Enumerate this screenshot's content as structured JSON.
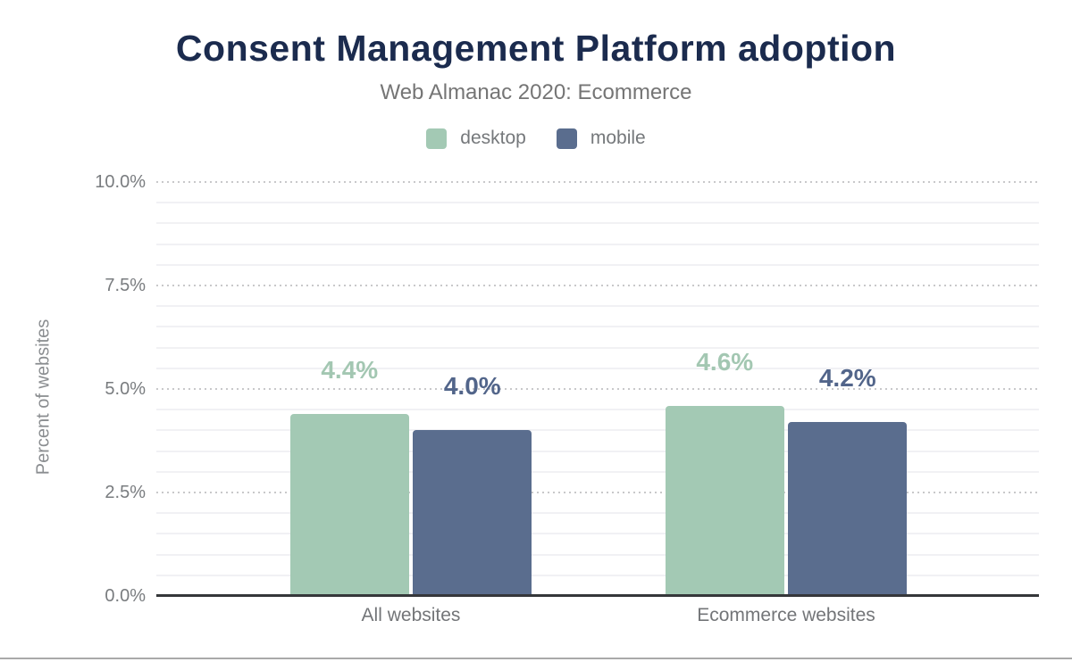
{
  "chart_data": {
    "type": "bar",
    "title": "Consent Management Platform adoption",
    "subtitle": "Web Almanac 2020: Ecommerce",
    "ylabel": "Percent of websites",
    "categories": [
      "All websites",
      "Ecommerce websites"
    ],
    "series": [
      {
        "name": "desktop",
        "color": "#a3c9b4",
        "label_color": "#a3c7b2",
        "values": [
          4.4,
          4.6
        ],
        "value_labels": [
          "4.4%",
          "4.6%"
        ]
      },
      {
        "name": "mobile",
        "color": "#5a6d8e",
        "label_color": "#52658a",
        "values": [
          4.0,
          4.2
        ],
        "value_labels": [
          "4.0%",
          "4.2%"
        ]
      }
    ],
    "ylim": [
      0,
      10
    ],
    "ytick_values": [
      0,
      2.5,
      5,
      7.5,
      10
    ],
    "ytick_labels": [
      "0.0%",
      "2.5%",
      "5.0%",
      "7.5%",
      "10.0%"
    ],
    "minor_grid_step": 0.5,
    "legend_position": "top",
    "grid": "horizontal"
  },
  "colors": {
    "title_text": "#1b2b4e",
    "muted_text": "#757575",
    "axis_line": "#35373a",
    "major_grid": "#c8c8ca",
    "minor_grid": "#f1f1f4",
    "footer_divider": "#a9a9a9"
  }
}
